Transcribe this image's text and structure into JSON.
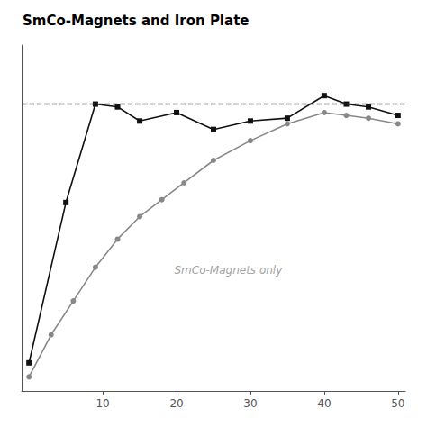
{
  "chart_data": {
    "type": "line",
    "title": "SmCo-Magnets and Iron Plate",
    "xlim": [
      -1,
      51
    ],
    "ylim": [
      -0.05,
      1.18
    ],
    "xticks": [
      10,
      20,
      30,
      40,
      50
    ],
    "tick_labels": "x",
    "grid": false,
    "series": [
      {
        "color": "#111111",
        "marker": "square",
        "x": [
          0,
          5,
          9,
          12,
          15,
          20,
          25,
          30,
          35,
          40,
          43,
          46,
          50
        ],
        "values": [
          0.05,
          0.62,
          0.97,
          0.96,
          0.91,
          0.94,
          0.88,
          0.91,
          0.92,
          1.0,
          0.97,
          0.96,
          0.93
        ]
      },
      {
        "color": "#888888",
        "marker": "circle",
        "x": [
          0,
          3,
          6,
          9,
          12,
          15,
          18,
          21,
          25,
          30,
          35,
          40,
          43,
          46,
          50
        ],
        "values": [
          0.0,
          0.15,
          0.27,
          0.39,
          0.49,
          0.57,
          0.63,
          0.69,
          0.77,
          0.84,
          0.9,
          0.94,
          0.93,
          0.92,
          0.9
        ]
      }
    ],
    "reference_line": {
      "y": 0.97,
      "color": "#555555",
      "line_style": "dashed"
    },
    "annotations": [
      {
        "text": "SmCo-Magnets only",
        "x": 27,
        "y": 0.38,
        "color": "#888888"
      }
    ]
  }
}
